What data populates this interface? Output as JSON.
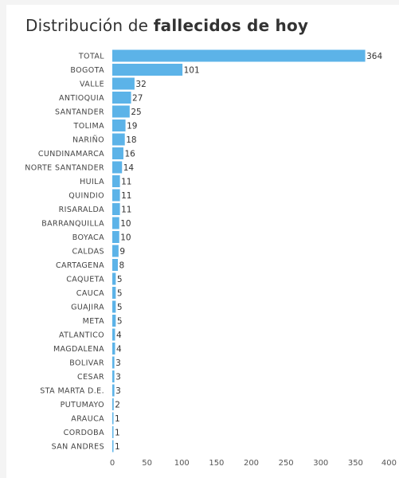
{
  "title": {
    "regular": "Distribución de ",
    "bold": "fallecidos de hoy"
  },
  "chart_data": {
    "type": "bar",
    "orientation": "horizontal",
    "title": "Distribución de fallecidos de hoy",
    "categories": [
      "TOTAL",
      "BOGOTA",
      "VALLE",
      "ANTIOQUIA",
      "SANTANDER",
      "TOLIMA",
      "NARIÑO",
      "CUNDINAMARCA",
      "NORTE SANTANDER",
      "HUILA",
      "QUINDIO",
      "RISARALDA",
      "BARRANQUILLA",
      "BOYACA",
      "CALDAS",
      "CARTAGENA",
      "CAQUETA",
      "CAUCA",
      "GUAJIRA",
      "META",
      "ATLANTICO",
      "MAGDALENA",
      "BOLIVAR",
      "CESAR",
      "STA MARTA D.E.",
      "PUTUMAYO",
      "ARAUCA",
      "CORDOBA",
      "SAN ANDRES"
    ],
    "values": [
      364,
      101,
      32,
      27,
      25,
      19,
      18,
      16,
      14,
      11,
      11,
      11,
      10,
      10,
      9,
      8,
      5,
      5,
      5,
      5,
      4,
      4,
      3,
      3,
      3,
      2,
      1,
      1,
      1
    ],
    "xlim": [
      0,
      400
    ],
    "xticks": [
      0,
      50,
      100,
      150,
      200,
      250,
      300,
      350,
      400
    ],
    "bar_color": "#5cb3e8",
    "grid": false,
    "legend": "none"
  }
}
